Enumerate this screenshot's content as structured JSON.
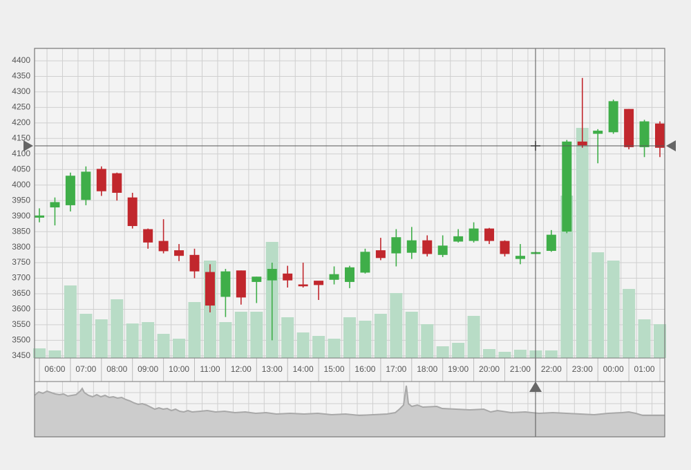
{
  "chart_data": {
    "type": "candlestick",
    "categories": [
      null,
      "06:00",
      null,
      "07:00",
      null,
      "08:00",
      null,
      "09:00",
      null,
      "10:00",
      null,
      "11:00",
      null,
      "12:00",
      null,
      "13:00",
      null,
      "14:00",
      null,
      "15:00",
      null,
      "16:00",
      null,
      "17:00",
      null,
      "18:00",
      null,
      "19:00",
      null,
      "20:00",
      null,
      "21:00",
      null,
      "22:00",
      null,
      "23:00",
      null,
      "00:00",
      null,
      "01:00",
      null
    ],
    "open": [
      3895,
      3928,
      3935,
      3952,
      4052,
      4038,
      3960,
      3858,
      3820,
      3790,
      3775,
      3720,
      3640,
      3725,
      3688,
      3693,
      3715,
      3680,
      3692,
      3695,
      3688,
      3718,
      3790,
      3780,
      3782,
      3822,
      3775,
      3818,
      3820,
      3860,
      3820,
      3762,
      3778,
      3788,
      3850,
      4140,
      4165,
      4170,
      4245,
      4122,
      4198
    ],
    "high": [
      3925,
      3960,
      4040,
      4060,
      4060,
      4040,
      3975,
      3860,
      3890,
      3810,
      3795,
      3745,
      3730,
      3725,
      3705,
      3750,
      3740,
      3750,
      3690,
      3738,
      3740,
      3795,
      3830,
      3858,
      3865,
      3838,
      3838,
      3858,
      3880,
      3862,
      3822,
      3810,
      3785,
      3855,
      4145,
      4345,
      4180,
      4275,
      4245,
      4210,
      4205
    ],
    "low": [
      3880,
      3870,
      3915,
      3935,
      3965,
      3950,
      3860,
      3795,
      3780,
      3755,
      3700,
      3590,
      3575,
      3615,
      3620,
      3500,
      3670,
      3670,
      3630,
      3680,
      3668,
      3715,
      3758,
      3738,
      3762,
      3770,
      3768,
      3815,
      3815,
      3810,
      3770,
      3745,
      3778,
      3785,
      3845,
      4120,
      4070,
      4165,
      4115,
      4090,
      4090
    ],
    "close": [
      3902,
      3945,
      4030,
      4043,
      3980,
      3975,
      3868,
      3815,
      3787,
      3772,
      3722,
      3612,
      3722,
      3638,
      3705,
      3730,
      3693,
      3674,
      3678,
      3713,
      3735,
      3785,
      3765,
      3832,
      3822,
      3778,
      3805,
      3835,
      3860,
      3820,
      3778,
      3772,
      3784,
      3840,
      4140,
      4128,
      4175,
      4270,
      4122,
      4205,
      4120
    ],
    "volume": [
      14,
      11,
      105,
      64,
      56,
      85,
      50,
      52,
      35,
      28,
      81,
      141,
      52,
      67,
      67,
      168,
      59,
      37,
      32,
      28,
      59,
      54,
      64,
      94,
      67,
      49,
      17,
      22,
      61,
      13,
      9,
      12,
      11,
      11,
      235,
      333,
      153,
      141,
      100,
      56,
      49
    ],
    "volume_lim": [
      0,
      448
    ],
    "ylim": [
      3443,
      4440
    ],
    "yticks": [
      3450,
      3500,
      3550,
      3600,
      3650,
      3700,
      3750,
      3800,
      3850,
      3900,
      3950,
      4000,
      4050,
      4100,
      4150,
      4200,
      4250,
      4300,
      4350,
      4400
    ],
    "up_color": "#3fae49",
    "down_color": "#c1272d",
    "volume_color": "#b8dcc6",
    "grid": true
  }
}
